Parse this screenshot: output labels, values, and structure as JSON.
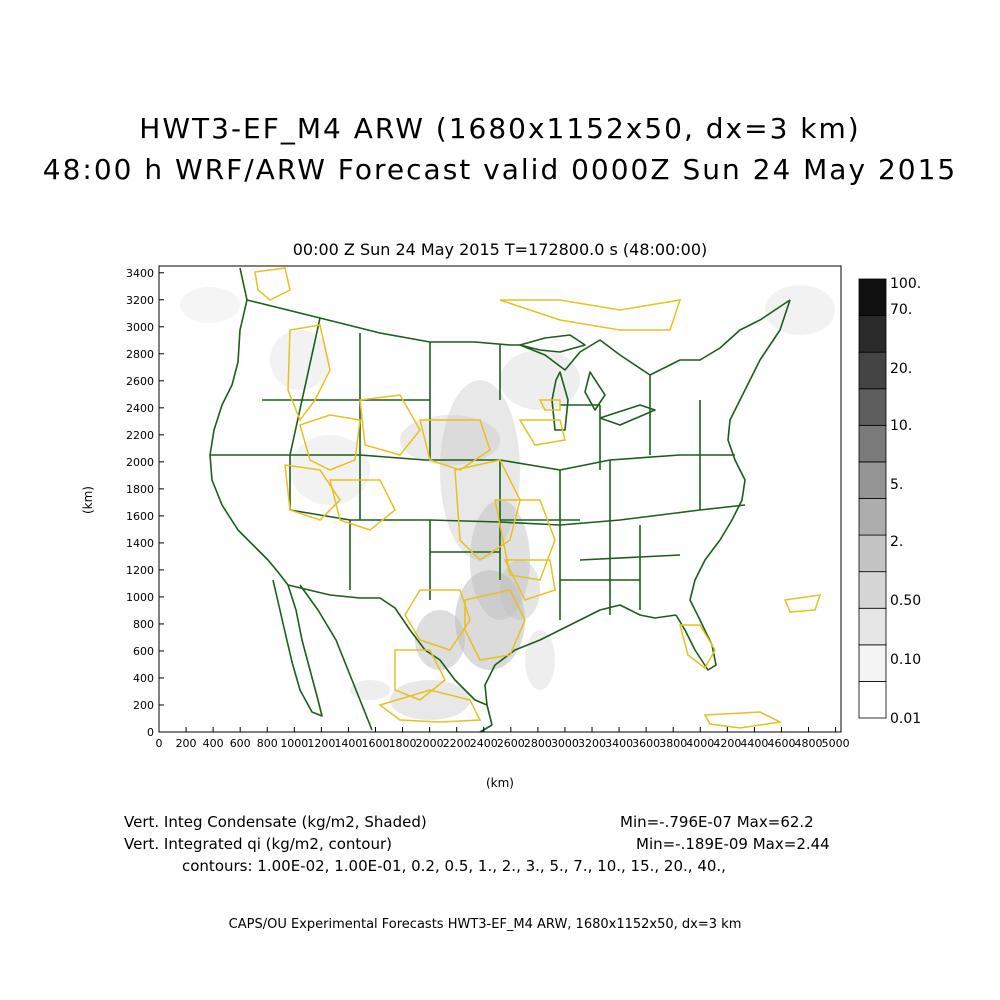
{
  "title_line1": "HWT3-EF_M4 ARW (1680x1152x50, dx=3 km)",
  "title_line2": "48:00 h WRF/ARW Forecast valid 0000Z Sun 24 May 2015",
  "subtitle": "00:00 Z Sun 24 May 2015    T=172800.0 s (48:00:00)",
  "axes": {
    "xlabel": "(km)",
    "ylabel": "(km)",
    "x_ticks": [
      "0",
      "200",
      "400",
      "600",
      "800",
      "1000",
      "1200",
      "1400",
      "1600",
      "1800",
      "2000",
      "2200",
      "2400",
      "2600",
      "2800",
      "3000",
      "3200",
      "3400",
      "3600",
      "3800",
      "4000",
      "4200",
      "4400",
      "4600",
      "4800",
      "5000"
    ],
    "y_ticks": [
      "0",
      "200",
      "400",
      "600",
      "800",
      "1000",
      "1200",
      "1400",
      "1600",
      "1800",
      "2000",
      "2200",
      "2400",
      "2600",
      "2800",
      "3000",
      "3200",
      "3400"
    ],
    "xlim": [
      0,
      5040
    ],
    "ylim": [
      0,
      3450
    ]
  },
  "colorbar": {
    "labels": [
      "0.01",
      "0.10",
      "0.50",
      "2.",
      "5.",
      "10.",
      "20.",
      "70.",
      "100."
    ],
    "colors": [
      "#ffffff",
      "#f4f4f4",
      "#e6e6e6",
      "#d6d6d6",
      "#c4c4c4",
      "#adadad",
      "#959595",
      "#7a7a7a",
      "#5e5e5e",
      "#444444",
      "#2a2a2a",
      "#101010"
    ]
  },
  "colors": {
    "map_lines": "#1a5e1a",
    "contour": "#e8c020",
    "shading": "#bdbdbd"
  },
  "annotations": {
    "field1_label": "Vert. Integ Condensate (kg/m2, Shaded)",
    "field1_range": "Min=-.796E-07 Max=62.2",
    "field2_label": "Vert. Integrated qi (kg/m2, contour)",
    "field2_range": "Min=-.189E-09 Max=2.44",
    "contours": "contours: 1.00E-02, 1.00E-01, 0.2, 0.5, 1., 2., 3., 5., 7., 10., 15., 20., 40.,"
  },
  "footer": "CAPS/OU Experimental Forecasts  HWT3-EF_M4 ARW, 1680x1152x50, dx=3 km"
}
